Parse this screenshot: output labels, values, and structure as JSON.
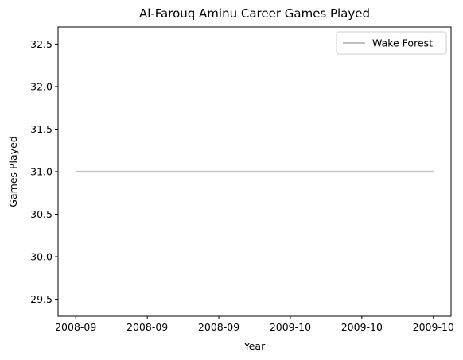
{
  "chart_data": {
    "type": "line",
    "title": "Al-Farouq Aminu Career Games Played",
    "xlabel": "Year",
    "ylabel": "Games Played",
    "x": [
      "2008-09",
      "2009-10"
    ],
    "x_tick_labels": [
      "2008-09",
      "2008-09",
      "2008-09",
      "2009-10",
      "2009-10",
      "2009-10"
    ],
    "y_ticks": [
      "29.5",
      "30.0",
      "30.5",
      "31.0",
      "31.5",
      "32.0",
      "32.5"
    ],
    "ylim": [
      29.3,
      32.7
    ],
    "grid": false,
    "legend_position": "top-right",
    "series": [
      {
        "name": "Wake Forest",
        "values": [
          31,
          31
        ],
        "color": "#c0c0c0"
      }
    ]
  }
}
